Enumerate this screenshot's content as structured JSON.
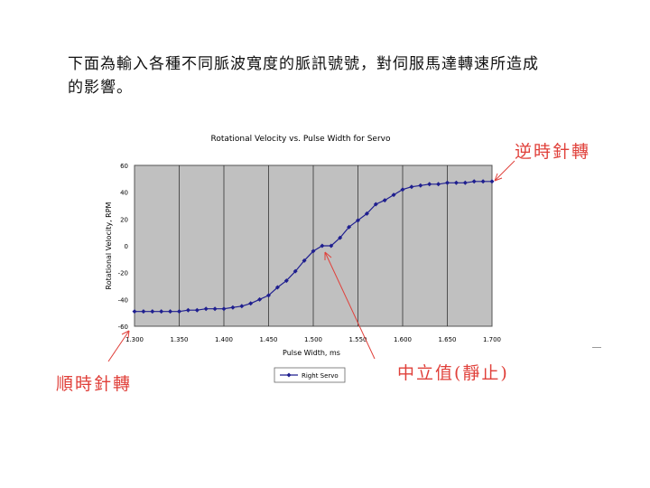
{
  "intro_text": "下面為輸入各種不同脈波寬度的脈訊號號，對伺服馬達轉速所造成的影響。",
  "annotations": {
    "ccw": "逆時針轉",
    "cw": "順時針轉",
    "neutral": "中立值(靜止)"
  },
  "colors": {
    "plot_bg": "#c0c0c0",
    "series": "#1f1f8f",
    "annotation": "#e0403a"
  },
  "chart_data": {
    "type": "line",
    "title": "Rotational Velocity vs. Pulse Width for Servo",
    "xlabel": "Pulse Width, ms",
    "ylabel": "Rotational Velocity, RPM",
    "xlim": [
      1.3,
      1.7
    ],
    "ylim": [
      -60,
      60
    ],
    "xticks": [
      "1.300",
      "1.350",
      "1.400",
      "1.450",
      "1.500",
      "1.550",
      "1.600",
      "1.650",
      "1.700"
    ],
    "yticks": [
      "60",
      "40",
      "20",
      "0",
      "-20",
      "-40",
      "-60"
    ],
    "grid": true,
    "legend_position": "bottom",
    "series": [
      {
        "name": "Right Servo",
        "x": [
          1.3,
          1.31,
          1.32,
          1.33,
          1.34,
          1.35,
          1.36,
          1.37,
          1.38,
          1.39,
          1.4,
          1.41,
          1.42,
          1.43,
          1.44,
          1.45,
          1.46,
          1.47,
          1.48,
          1.49,
          1.5,
          1.51,
          1.52,
          1.53,
          1.54,
          1.55,
          1.56,
          1.57,
          1.58,
          1.59,
          1.6,
          1.61,
          1.62,
          1.63,
          1.64,
          1.65,
          1.66,
          1.67,
          1.68,
          1.69,
          1.7
        ],
        "y": [
          -49,
          -49,
          -49,
          -49,
          -49,
          -49,
          -48,
          -48,
          -47,
          -47,
          -47,
          -46,
          -45,
          -43,
          -40,
          -37,
          -31,
          -26,
          -19,
          -11,
          -4,
          0,
          0,
          6,
          14,
          19,
          24,
          31,
          34,
          38,
          42,
          44,
          45,
          46,
          46,
          47,
          47,
          47,
          48,
          48,
          48
        ]
      }
    ]
  }
}
